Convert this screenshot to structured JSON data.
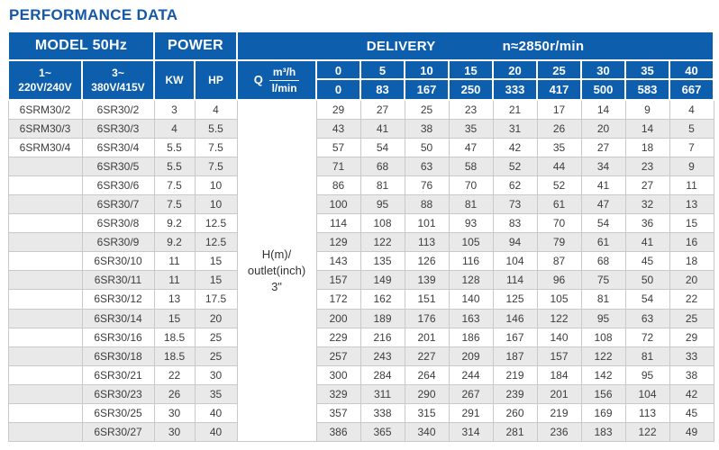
{
  "page": {
    "title": "PERFORMANCE DATA"
  },
  "colors": {
    "header_blue": "#0e5eae",
    "title_blue": "#1558a8",
    "stripe_gray": "#e9e9e9",
    "border_gray": "#c9c9c9"
  },
  "table": {
    "header": {
      "model_label": "MODEL 50Hz",
      "power_label": "POWER",
      "delivery_label": "DELIVERY",
      "speed_label": "n≈2850r/min",
      "col1_line1": "1~",
      "col1_line2": "220V/240V",
      "col2_line1": "3~",
      "col2_line2": "380V/415V",
      "kw_label": "KW",
      "hp_label": "HP",
      "q_label": "Q",
      "q_num": "m³/h",
      "q_den": "l/min",
      "flow_m3h": [
        "0",
        "5",
        "10",
        "15",
        "20",
        "25",
        "30",
        "35",
        "40"
      ],
      "flow_lmin": [
        "0",
        "83",
        "167",
        "250",
        "333",
        "417",
        "500",
        "583",
        "667"
      ]
    },
    "h_cell": {
      "line1": "H(m)/",
      "line2": "outlet(inch)",
      "line3": "3\""
    },
    "rows": [
      {
        "model1": "6SRM30/2",
        "model3": "6SR30/2",
        "kw": "3",
        "hp": "4",
        "values": [
          29,
          27,
          25,
          23,
          21,
          17,
          14,
          9,
          4
        ]
      },
      {
        "model1": "6SRM30/3",
        "model3": "6SR30/3",
        "kw": "4",
        "hp": "5.5",
        "values": [
          43,
          41,
          38,
          35,
          31,
          26,
          20,
          14,
          5
        ]
      },
      {
        "model1": "6SRM30/4",
        "model3": "6SR30/4",
        "kw": "5.5",
        "hp": "7.5",
        "values": [
          57,
          54,
          50,
          47,
          42,
          35,
          27,
          18,
          7
        ]
      },
      {
        "model1": "",
        "model3": "6SR30/5",
        "kw": "5.5",
        "hp": "7.5",
        "values": [
          71,
          68,
          63,
          58,
          52,
          44,
          34,
          23,
          9
        ]
      },
      {
        "model1": "",
        "model3": "6SR30/6",
        "kw": "7.5",
        "hp": "10",
        "values": [
          86,
          81,
          76,
          70,
          62,
          52,
          41,
          27,
          11
        ]
      },
      {
        "model1": "",
        "model3": "6SR30/7",
        "kw": "7.5",
        "hp": "10",
        "values": [
          100,
          95,
          88,
          81,
          73,
          61,
          47,
          32,
          13
        ]
      },
      {
        "model1": "",
        "model3": "6SR30/8",
        "kw": "9.2",
        "hp": "12.5",
        "values": [
          114,
          108,
          101,
          93,
          83,
          70,
          54,
          36,
          15
        ]
      },
      {
        "model1": "",
        "model3": "6SR30/9",
        "kw": "9.2",
        "hp": "12.5",
        "values": [
          129,
          122,
          113,
          105,
          94,
          79,
          61,
          41,
          16
        ]
      },
      {
        "model1": "",
        "model3": "6SR30/10",
        "kw": "11",
        "hp": "15",
        "values": [
          143,
          135,
          126,
          116,
          104,
          87,
          68,
          45,
          18
        ]
      },
      {
        "model1": "",
        "model3": "6SR30/11",
        "kw": "11",
        "hp": "15",
        "values": [
          157,
          149,
          139,
          128,
          114,
          96,
          75,
          50,
          20
        ]
      },
      {
        "model1": "",
        "model3": "6SR30/12",
        "kw": "13",
        "hp": "17.5",
        "values": [
          172,
          162,
          151,
          140,
          125,
          105,
          81,
          54,
          22
        ]
      },
      {
        "model1": "",
        "model3": "6SR30/14",
        "kw": "15",
        "hp": "20",
        "values": [
          200,
          189,
          176,
          163,
          146,
          122,
          95,
          63,
          25
        ]
      },
      {
        "model1": "",
        "model3": "6SR30/16",
        "kw": "18.5",
        "hp": "25",
        "values": [
          229,
          216,
          201,
          186,
          167,
          140,
          108,
          72,
          29
        ]
      },
      {
        "model1": "",
        "model3": "6SR30/18",
        "kw": "18.5",
        "hp": "25",
        "values": [
          257,
          243,
          227,
          209,
          187,
          157,
          122,
          81,
          33
        ]
      },
      {
        "model1": "",
        "model3": "6SR30/21",
        "kw": "22",
        "hp": "30",
        "values": [
          300,
          284,
          264,
          244,
          219,
          184,
          142,
          95,
          38
        ]
      },
      {
        "model1": "",
        "model3": "6SR30/23",
        "kw": "26",
        "hp": "35",
        "values": [
          329,
          311,
          290,
          267,
          239,
          201,
          156,
          104,
          42
        ]
      },
      {
        "model1": "",
        "model3": "6SR30/25",
        "kw": "30",
        "hp": "40",
        "values": [
          357,
          338,
          315,
          291,
          260,
          219,
          169,
          113,
          45
        ]
      },
      {
        "model1": "",
        "model3": "6SR30/27",
        "kw": "30",
        "hp": "40",
        "values": [
          386,
          365,
          340,
          314,
          281,
          236,
          183,
          122,
          49
        ]
      }
    ]
  }
}
